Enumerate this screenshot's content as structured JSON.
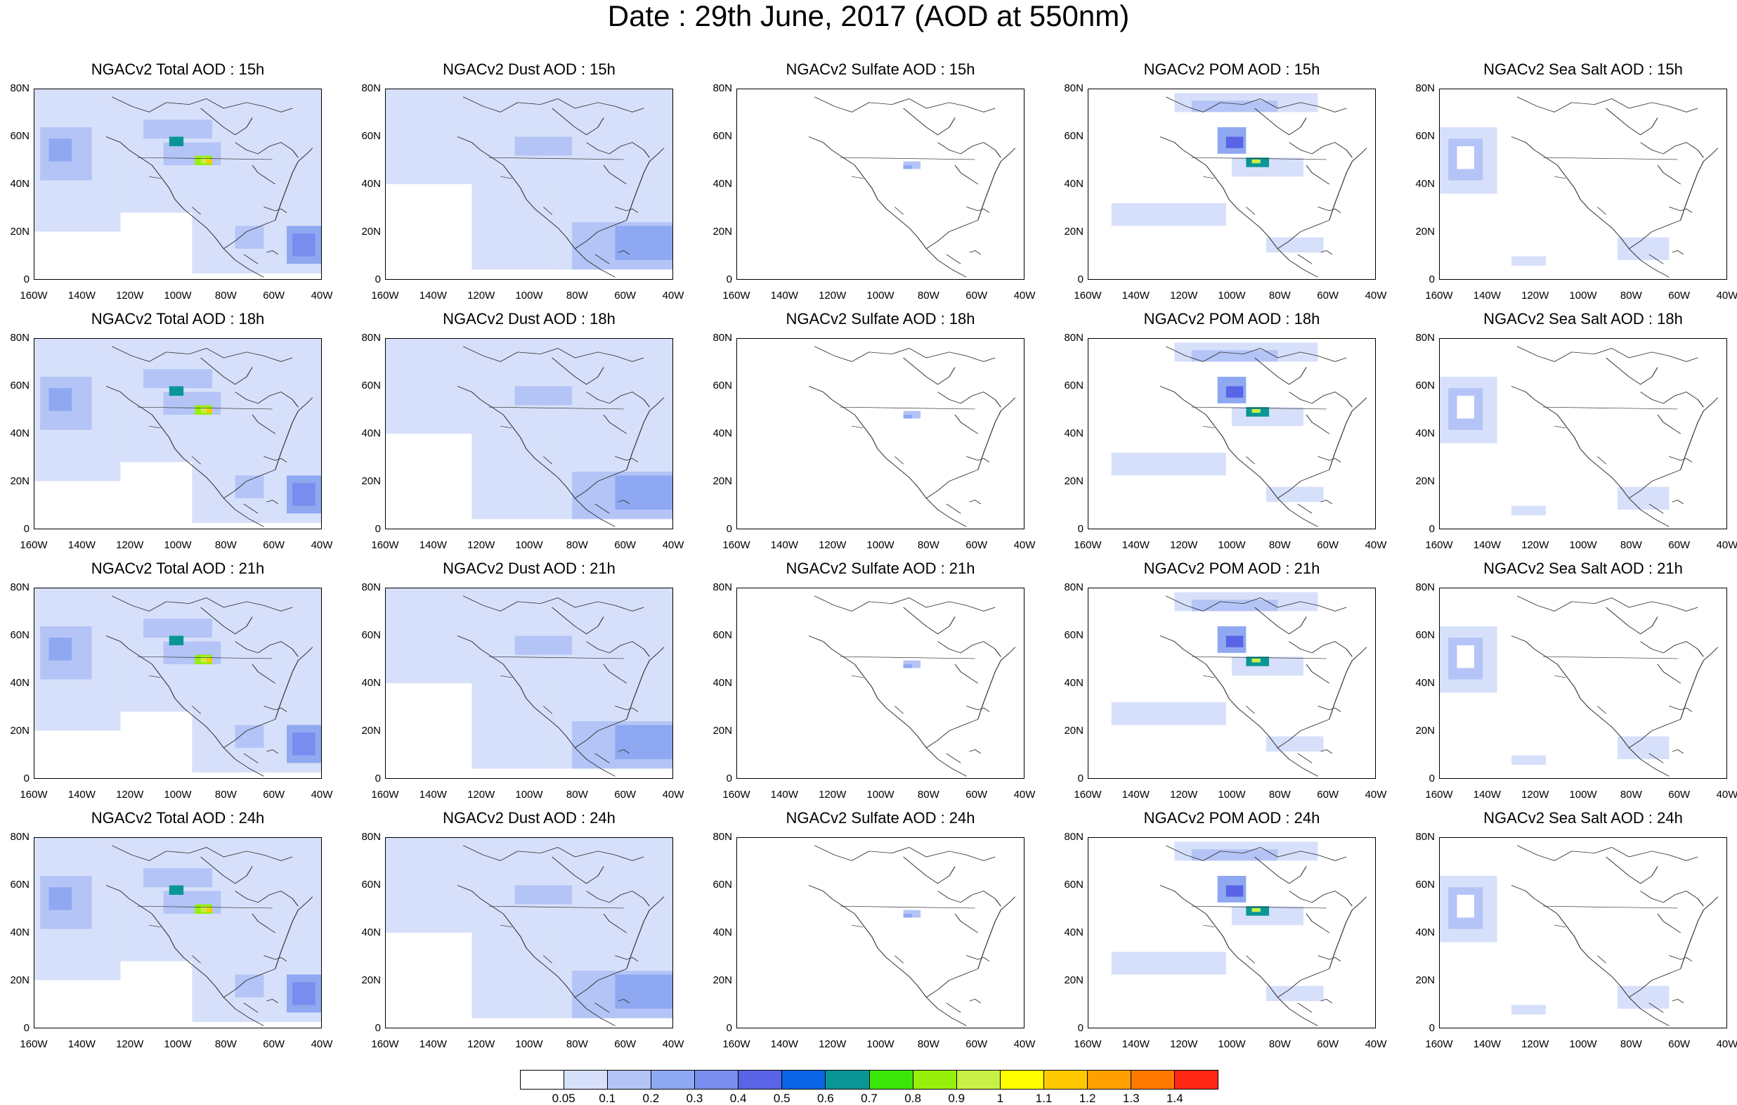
{
  "title": "Date : 29th June, 2017 (AOD at 550nm)",
  "lat_ticks": [
    "80N",
    "60N",
    "40N",
    "20N",
    "0"
  ],
  "lon_ticks": [
    "160W",
    "140W",
    "120W",
    "100W",
    "80W",
    "60W",
    "40W"
  ],
  "panels": [
    {
      "title": "NGACv2 Total AOD : 15h",
      "species": "total",
      "hour": "15h"
    },
    {
      "title": "NGACv2 Dust AOD : 15h",
      "species": "dust",
      "hour": "15h"
    },
    {
      "title": "NGACv2 Sulfate AOD : 15h",
      "species": "sulfate",
      "hour": "15h"
    },
    {
      "title": "NGACv2 POM AOD : 15h",
      "species": "pom",
      "hour": "15h"
    },
    {
      "title": "NGACv2 Sea Salt AOD : 15h",
      "species": "seasalt",
      "hour": "15h"
    },
    {
      "title": "NGACv2 Total AOD : 18h",
      "species": "total",
      "hour": "18h"
    },
    {
      "title": "NGACv2 Dust AOD : 18h",
      "species": "dust",
      "hour": "18h"
    },
    {
      "title": "NGACv2 Sulfate AOD : 18h",
      "species": "sulfate",
      "hour": "18h"
    },
    {
      "title": "NGACv2 POM AOD : 18h",
      "species": "pom",
      "hour": "18h"
    },
    {
      "title": "NGACv2 Sea Salt AOD : 18h",
      "species": "seasalt",
      "hour": "18h"
    },
    {
      "title": "NGACv2 Total AOD : 21h",
      "species": "total",
      "hour": "21h"
    },
    {
      "title": "NGACv2 Dust AOD : 21h",
      "species": "dust",
      "hour": "21h"
    },
    {
      "title": "NGACv2 Sulfate AOD : 21h",
      "species": "sulfate",
      "hour": "21h"
    },
    {
      "title": "NGACv2 POM AOD : 21h",
      "species": "pom",
      "hour": "21h"
    },
    {
      "title": "NGACv2 Sea Salt AOD : 21h",
      "species": "seasalt",
      "hour": "21h"
    },
    {
      "title": "NGACv2 Total AOD : 24h",
      "species": "total",
      "hour": "24h"
    },
    {
      "title": "NGACv2 Dust AOD : 24h",
      "species": "dust",
      "hour": "24h"
    },
    {
      "title": "NGACv2 Sulfate AOD : 24h",
      "species": "sulfate",
      "hour": "24h"
    },
    {
      "title": "NGACv2 POM AOD : 24h",
      "species": "pom",
      "hour": "24h"
    },
    {
      "title": "NGACv2 Sea Salt  AOD : 24h",
      "species": "seasalt",
      "hour": "24h"
    }
  ],
  "colorbar": {
    "colors": [
      "#ffffff",
      "#d7e0fa",
      "#b4c4f6",
      "#8fa8f2",
      "#7a8cee",
      "#5964e6",
      "#0a64e6",
      "#0a9696",
      "#3ce60a",
      "#96f00a",
      "#c8f046",
      "#ffff00",
      "#ffc800",
      "#ffa000",
      "#ff7800",
      "#ff2814"
    ],
    "labels": [
      "0.05",
      "0.1",
      "0.2",
      "0.3",
      "0.4",
      "0.5",
      "0.6",
      "0.7",
      "0.8",
      "0.9",
      "1",
      "1.1",
      "1.2",
      "1.3",
      "1.4"
    ]
  },
  "palette": {
    "background": "#ffffff",
    "coast": "#333333"
  }
}
